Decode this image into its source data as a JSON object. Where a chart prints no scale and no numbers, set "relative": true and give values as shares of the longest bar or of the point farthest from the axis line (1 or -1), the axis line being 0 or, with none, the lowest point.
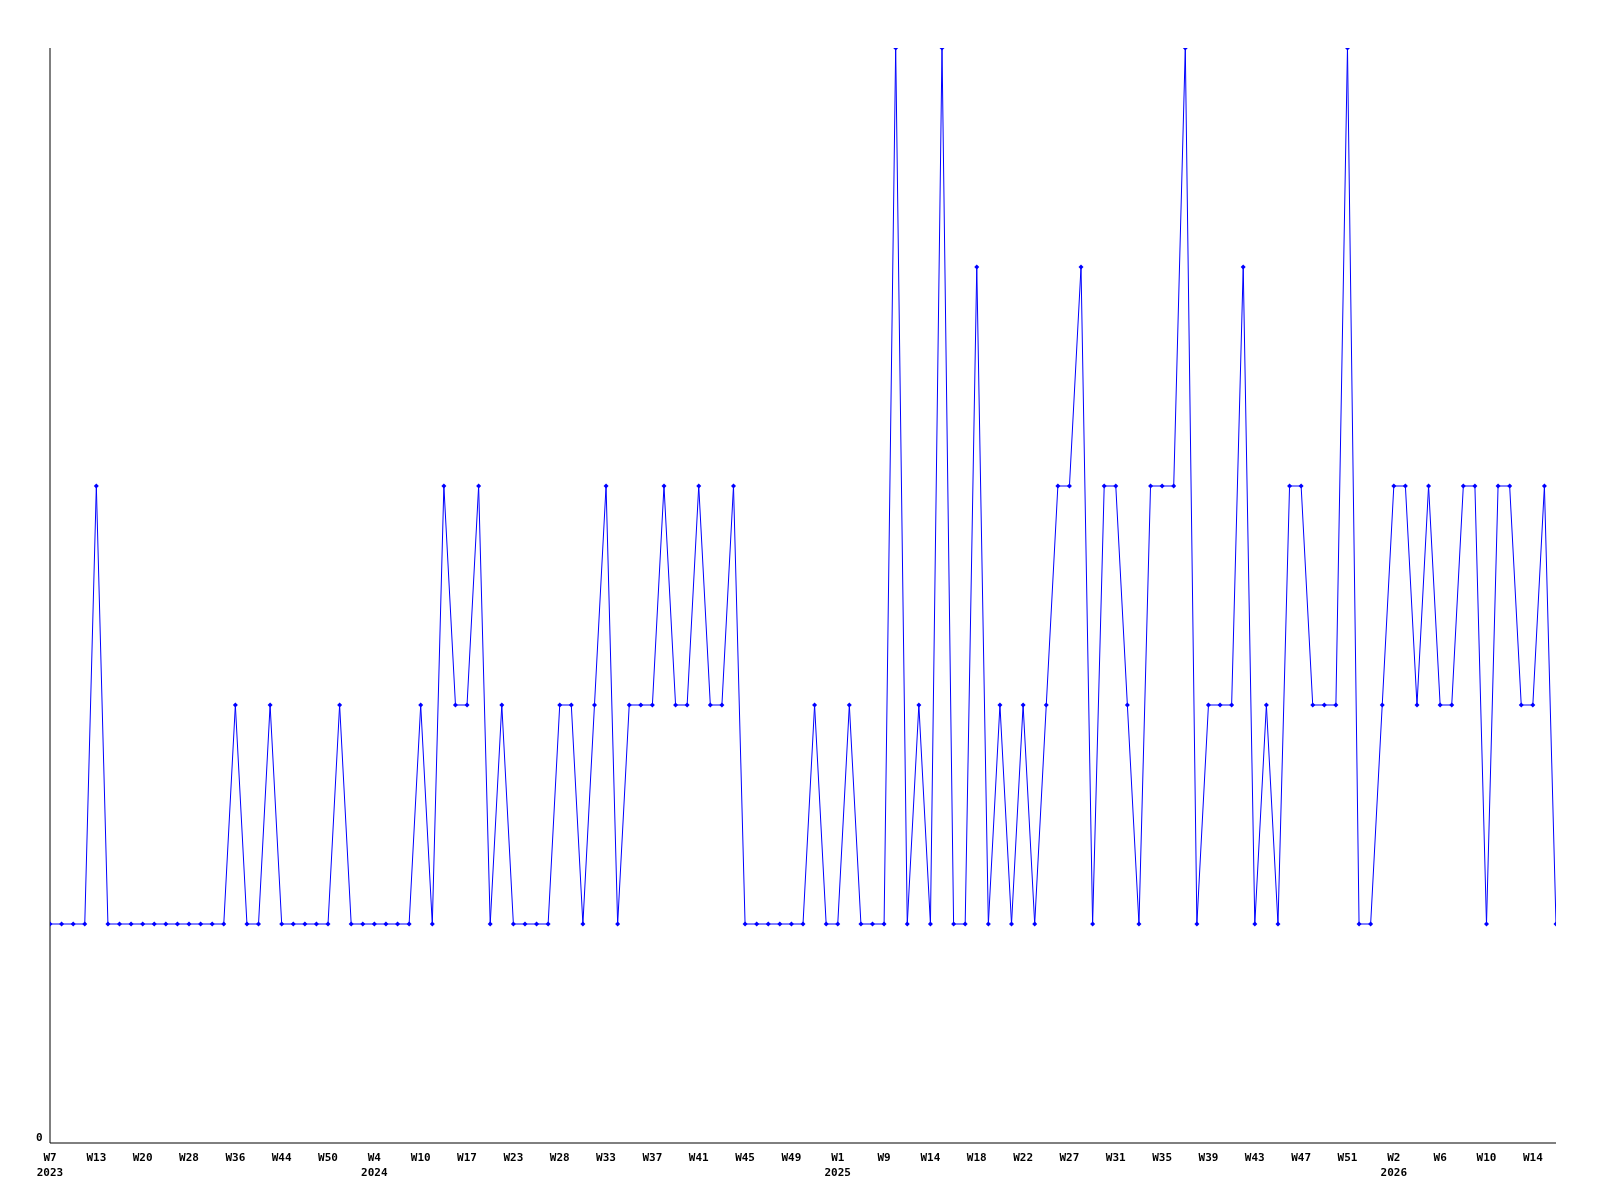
{
  "chart_data": {
    "type": "line",
    "relative": true,
    "annotations": [
      "0"
    ],
    "marker": "diamond",
    "grid": false,
    "legend": false,
    "categories": [
      "W7\n2023",
      null,
      null,
      null,
      "W13",
      null,
      null,
      null,
      "W20",
      null,
      null,
      null,
      "W28",
      null,
      null,
      null,
      "W36",
      null,
      null,
      null,
      "W44",
      null,
      null,
      null,
      "W50",
      null,
      null,
      null,
      "W4\n2024",
      null,
      null,
      null,
      "W10",
      null,
      null,
      null,
      "W17",
      null,
      null,
      null,
      "W23",
      null,
      null,
      null,
      "W28",
      null,
      null,
      null,
      "W33",
      null,
      null,
      null,
      "W37",
      null,
      null,
      null,
      "W41",
      null,
      null,
      null,
      "W45",
      null,
      null,
      null,
      "W49",
      null,
      null,
      null,
      "W1\n2025",
      null,
      null,
      null,
      "W9",
      null,
      null,
      null,
      "W14",
      null,
      null,
      null,
      "W18",
      null,
      null,
      null,
      "W22",
      null,
      null,
      null,
      "W27",
      null,
      null,
      null,
      "W31",
      null,
      null,
      null,
      "W35",
      null,
      null,
      null,
      "W39",
      null,
      null,
      null,
      "W43",
      null,
      null,
      null,
      "W47",
      null,
      null,
      null,
      "W51",
      null,
      null,
      null,
      "W2\n2026",
      null,
      null,
      null,
      "W6",
      null,
      null,
      null,
      "W10",
      null,
      null,
      null,
      "W14",
      null,
      null
    ],
    "series": [
      {
        "color": "#0000ff",
        "values": [
          0.2,
          0.2,
          0.2,
          0.2,
          0.6,
          0.2,
          0.2,
          0.2,
          0.2,
          0.2,
          0.2,
          0.2,
          0.2,
          0.2,
          0.2,
          0.2,
          0.4,
          0.2,
          0.2,
          0.4,
          0.2,
          0.2,
          0.2,
          0.2,
          0.2,
          0.4,
          0.2,
          0.2,
          0.2,
          0.2,
          0.2,
          0.2,
          0.4,
          0.2,
          0.6,
          0.4,
          0.4,
          0.6,
          0.2,
          0.4,
          0.2,
          0.2,
          0.2,
          0.2,
          0.4,
          0.4,
          0.2,
          0.4,
          0.6,
          0.2,
          0.4,
          0.4,
          0.4,
          0.6,
          0.4,
          0.4,
          0.6,
          0.4,
          0.4,
          0.6,
          0.2,
          0.2,
          0.2,
          0.2,
          0.2,
          0.2,
          0.4,
          0.2,
          0.2,
          0.4,
          0.2,
          0.2,
          0.2,
          1,
          0.2,
          0.4,
          0.2,
          1,
          0.2,
          0.2,
          0.8,
          0.2,
          0.4,
          0.2,
          0.4,
          0.2,
          0.4,
          0.6,
          0.6,
          0.8,
          0.2,
          0.6,
          0.6,
          0.4,
          0.2,
          0.6,
          0.6,
          0.6,
          1,
          0.2,
          0.4,
          0.4,
          0.4,
          0.8,
          0.2,
          0.4,
          0.2,
          0.6,
          0.6,
          0.4,
          0.4,
          0.4,
          1,
          0.2,
          0.2,
          0.4,
          0.6,
          0.6,
          0.4,
          0.6,
          0.4,
          0.4,
          0.6,
          0.6,
          0.2,
          0.6,
          0.6,
          0.4,
          0.4,
          0.6,
          0.2
        ]
      }
    ]
  }
}
